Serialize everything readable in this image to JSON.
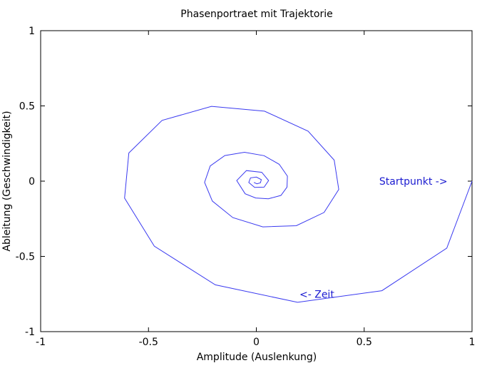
{
  "chart_data": {
    "type": "line",
    "title": "Phasenportraet mit Trajektorie",
    "xlabel": "Amplitude (Auslenkung)",
    "ylabel": "Ableitung (Geschwindigkeit)",
    "xlim": [
      -1,
      1
    ],
    "ylim": [
      -1,
      1
    ],
    "xticks": [
      "-1",
      "-0.5",
      "0",
      "0.5",
      "1"
    ],
    "yticks": [
      "1",
      "0.5",
      "0",
      "-0.5",
      "-1"
    ],
    "grid": false,
    "series": [
      {
        "color": "#3a3af0",
        "x": [
          1,
          0.883,
          0.582,
          0.191,
          -0.19,
          -0.473,
          -0.611,
          -0.591,
          -0.437,
          -0.208,
          0.038,
          0.24,
          0.361,
          0.382,
          0.314,
          0.185,
          0.03,
          -0.109,
          -0.204,
          -0.24,
          -0.214,
          -0.146,
          -0.055,
          0.036,
          0.106,
          0.144,
          0.142,
          0.114,
          0.056,
          -0.003,
          -0.052,
          -0.091,
          -0.046,
          0.025,
          0.057,
          0.036,
          -0.008,
          -0.035,
          -0.027,
          0.0004,
          0.023,
          0.0187,
          0.0028,
          -0.0112
        ],
        "y": [
          0,
          -0.445,
          -0.728,
          -0.805,
          -0.689,
          -0.432,
          -0.113,
          0.187,
          0.404,
          0.497,
          0.465,
          0.332,
          0.14,
          -0.055,
          -0.208,
          -0.296,
          -0.304,
          -0.242,
          -0.132,
          -0.008,
          0.101,
          0.17,
          0.192,
          0.169,
          0.112,
          0.033,
          -0.04,
          -0.095,
          -0.117,
          -0.112,
          -0.084,
          0.004,
          0.07,
          0.059,
          0.004,
          -0.04,
          -0.041,
          -0.009,
          0.022,
          0.027,
          0.01,
          -0.011,
          -0.0176,
          -0.0084
        ]
      }
    ],
    "annotations": [
      {
        "text": "Startpunkt ->",
        "x": 0.57,
        "y": 0,
        "color": "#1a1ad0"
      },
      {
        "text": "<- Zeit",
        "x": 0.2,
        "y": -0.75,
        "color": "#1a1ad0"
      }
    ]
  }
}
